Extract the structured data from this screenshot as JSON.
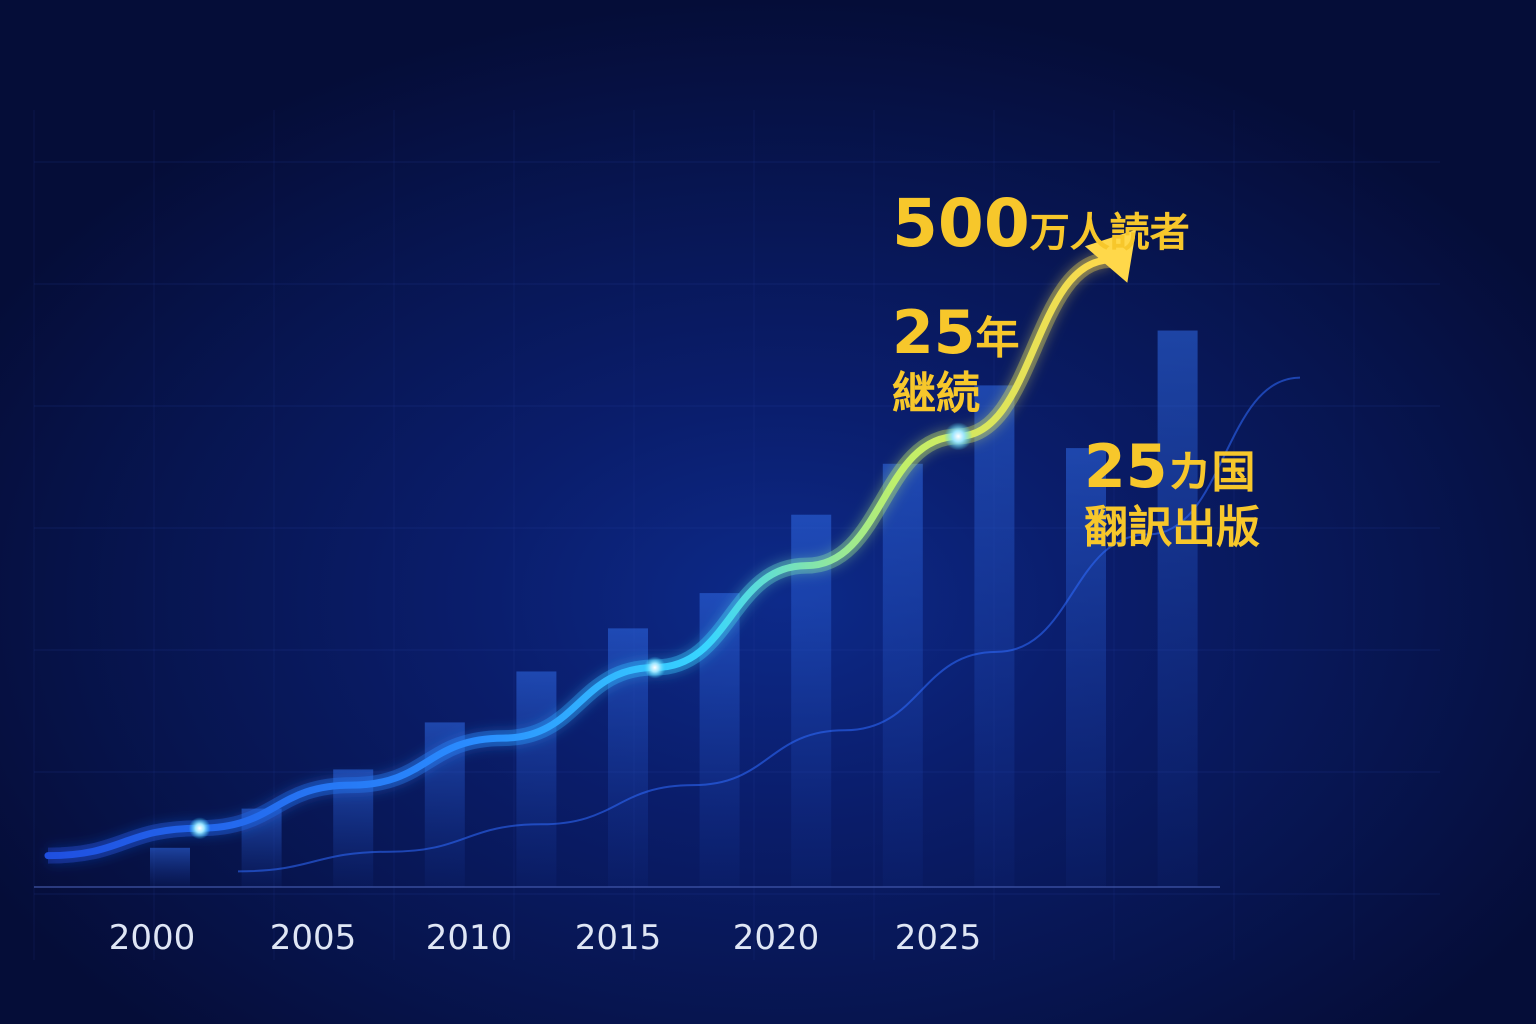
{
  "chart_data": {
    "type": "bar",
    "x": [
      "2000",
      "2005",
      "2010",
      "2015",
      "2020",
      "2025"
    ],
    "bars": [
      1.0,
      2.0,
      3.0,
      4.2,
      5.5,
      6.6,
      7.5,
      9.5,
      10.8,
      12.8,
      11.2,
      14.2
    ],
    "trend_curve": [
      0.8,
      1.5,
      2.6,
      3.8,
      5.6,
      8.2,
      11.5,
      16.0
    ],
    "secondary_curve": [
      0.4,
      0.9,
      1.6,
      2.6,
      4.0,
      6.0,
      9.0,
      13.0
    ],
    "grid": true,
    "colors": {
      "accent": "#f7c72b",
      "curve_start": "#1f5cff",
      "curve_mid": "#38d6ff",
      "curve_end": "#ffd84a",
      "bar": "#2a63d9",
      "background": "#07154f"
    }
  },
  "callouts": {
    "readers_num": "500",
    "readers_text": "万人読者",
    "years_num": "25",
    "years_unit": "年",
    "years_text": "継続",
    "countries_num": "25",
    "countries_unit": "カ国",
    "countries_text": "翻訳出版"
  }
}
